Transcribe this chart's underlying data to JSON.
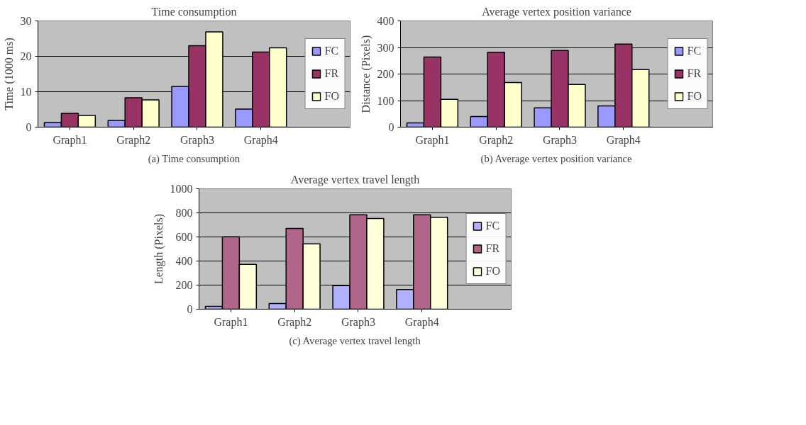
{
  "chart_data": [
    {
      "type": "bar",
      "title": "Time consumption",
      "ylabel": "Time (1000 ms)",
      "categories": [
        "Graph1",
        "Graph2",
        "Graph3",
        "Graph4"
      ],
      "series": [
        {
          "name": "FC",
          "color": "#9999ff",
          "values": [
            1.3,
            1.9,
            11.5,
            5.1
          ]
        },
        {
          "name": "FR",
          "color": "#993366",
          "values": [
            3.9,
            8.3,
            23.0,
            21.2
          ]
        },
        {
          "name": "FO",
          "color": "#ffffcc",
          "values": [
            3.3,
            7.7,
            26.9,
            22.4
          ]
        }
      ],
      "ylim": [
        0,
        30
      ],
      "yticks": [
        0,
        10,
        20,
        30
      ],
      "grid": "y",
      "legend": "right",
      "annotations": [
        "(a) Time consumption"
      ]
    },
    {
      "type": "bar",
      "title": "Average vertex position variance",
      "ylabel": "Distance (Pixels)",
      "categories": [
        "Graph1",
        "Graph2",
        "Graph3",
        "Graph4"
      ],
      "series": [
        {
          "name": "FC",
          "color": "#9999ff",
          "values": [
            16,
            40,
            73,
            80
          ]
        },
        {
          "name": "FR",
          "color": "#993366",
          "values": [
            264,
            282,
            289,
            313
          ]
        },
        {
          "name": "FO",
          "color": "#ffffcc",
          "values": [
            105,
            168,
            161,
            217
          ]
        }
      ],
      "ylim": [
        0,
        400
      ],
      "yticks": [
        0,
        100,
        200,
        300,
        400
      ],
      "grid": "y",
      "legend": "right",
      "annotations": [
        "(b) Average vertex position variance"
      ]
    },
    {
      "type": "bar",
      "title": "Average vertex travel length",
      "ylabel": "Length (Pixels)",
      "categories": [
        "Graph1",
        "Graph2",
        "Graph3",
        "Graph4"
      ],
      "series": [
        {
          "name": "FC",
          "color": "#b0b0ff",
          "values": [
            23,
            47,
            195,
            163
          ]
        },
        {
          "name": "FR",
          "color": "#b0668a",
          "values": [
            601,
            670,
            784,
            784
          ]
        },
        {
          "name": "FO",
          "color": "#ffffd8",
          "values": [
            372,
            543,
            753,
            763
          ]
        }
      ],
      "ylim": [
        0,
        1000
      ],
      "yticks": [
        0,
        200,
        400,
        600,
        800,
        1000
      ],
      "grid": "y",
      "legend": "right",
      "annotations": [
        "(c) Average vertex travel length"
      ]
    }
  ]
}
